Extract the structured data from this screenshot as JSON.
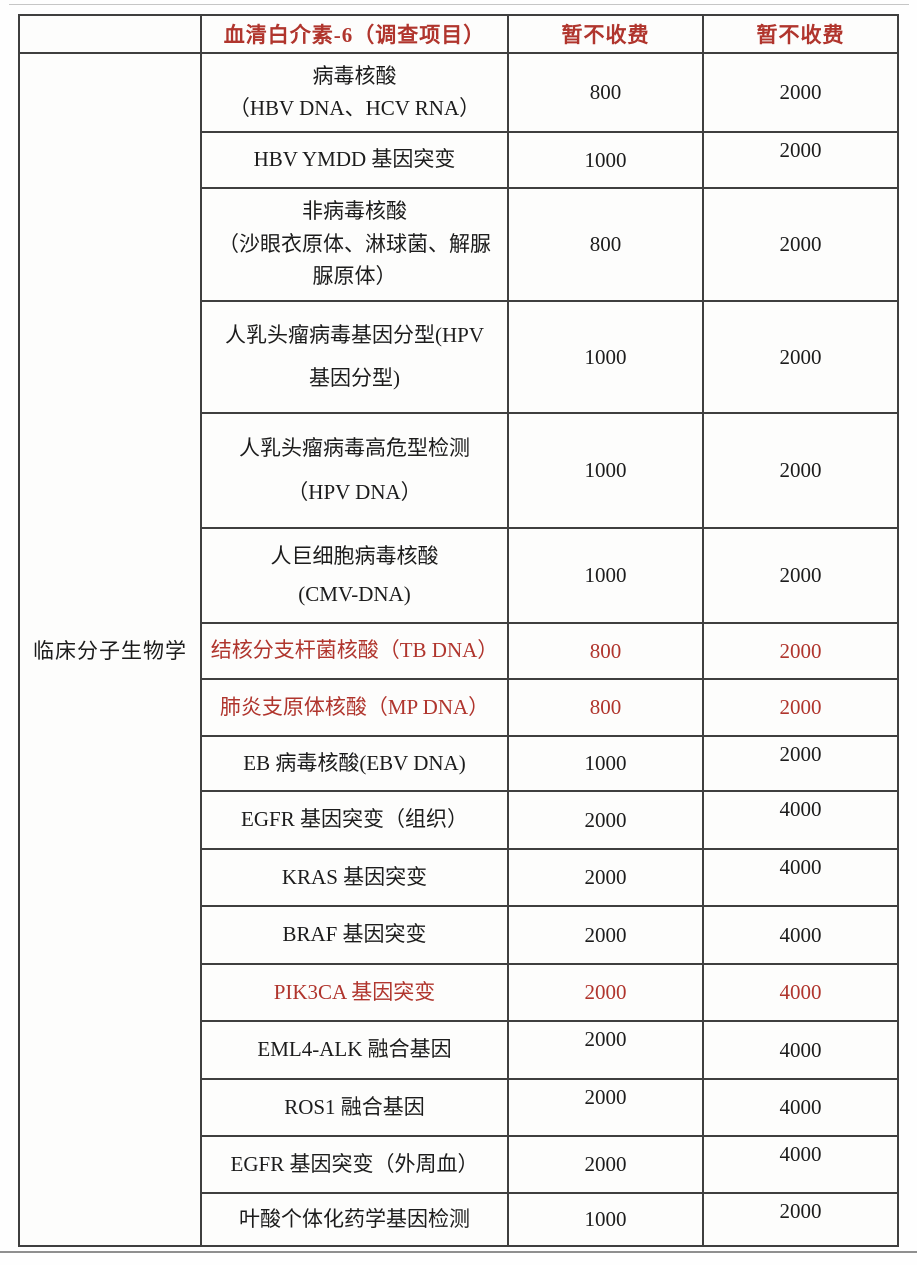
{
  "colors": {
    "red": "#b0352d",
    "text": "#1c1c1c",
    "border": "#3f3f3f"
  },
  "header": {
    "category_label": "",
    "item_label": "血清白介素-6（调查项目）",
    "price1_label": "暂不收费",
    "price2_label": "暂不收费"
  },
  "category": "临床分子生物学",
  "rows": [
    {
      "lines": [
        "病毒核酸",
        "（HBV DNA、HCV RNA）"
      ],
      "price1": "800",
      "price2": "2000",
      "red": false
    },
    {
      "lines": [
        "HBV YMDD 基因突变"
      ],
      "price1": "1000",
      "price2": "2000",
      "red": false
    },
    {
      "lines": [
        "非病毒核酸",
        "（沙眼衣原体、淋球菌、解脲",
        "脲原体）"
      ],
      "price1": "800",
      "price2": "2000",
      "red": false
    },
    {
      "lines": [
        "人乳头瘤病毒基因分型(HPV",
        "基因分型)"
      ],
      "price1": "1000",
      "price2": "2000",
      "red": false
    },
    {
      "lines": [
        "人乳头瘤病毒高危型检测",
        "（HPV DNA）"
      ],
      "price1": "1000",
      "price2": "2000",
      "red": false
    },
    {
      "lines": [
        "人巨细胞病毒核酸",
        "(CMV-DNA)"
      ],
      "price1": "1000",
      "price2": "2000",
      "red": false
    },
    {
      "lines": [
        "结核分支杆菌核酸（TB DNA）"
      ],
      "price1": "800",
      "price2": "2000",
      "red": true
    },
    {
      "lines": [
        "肺炎支原体核酸（MP DNA）"
      ],
      "price1": "800",
      "price2": "2000",
      "red": true
    },
    {
      "lines": [
        "EB 病毒核酸(EBV DNA)"
      ],
      "price1": "1000",
      "price2": "2000",
      "red": false
    },
    {
      "lines": [
        "EGFR 基因突变（组织）"
      ],
      "price1": "2000",
      "price2": "4000",
      "red": false
    },
    {
      "lines": [
        "KRAS 基因突变"
      ],
      "price1": "2000",
      "price2": "4000",
      "red": false
    },
    {
      "lines": [
        "BRAF 基因突变"
      ],
      "price1": "2000",
      "price2": "4000",
      "red": false
    },
    {
      "lines": [
        "PIK3CA 基因突变"
      ],
      "price1": "2000",
      "price2": "4000",
      "red": true
    },
    {
      "lines": [
        "EML4-ALK 融合基因"
      ],
      "price1": "2000",
      "price2": "4000",
      "red": false
    },
    {
      "lines": [
        "ROS1 融合基因"
      ],
      "price1": "2000",
      "price2": "4000",
      "red": false
    },
    {
      "lines": [
        "EGFR 基因突变（外周血）"
      ],
      "price1": "2000",
      "price2": "4000",
      "red": false
    },
    {
      "lines": [
        "叶酸个体化药学基因检测"
      ],
      "price1": "1000",
      "price2": "2000",
      "red": false
    }
  ]
}
